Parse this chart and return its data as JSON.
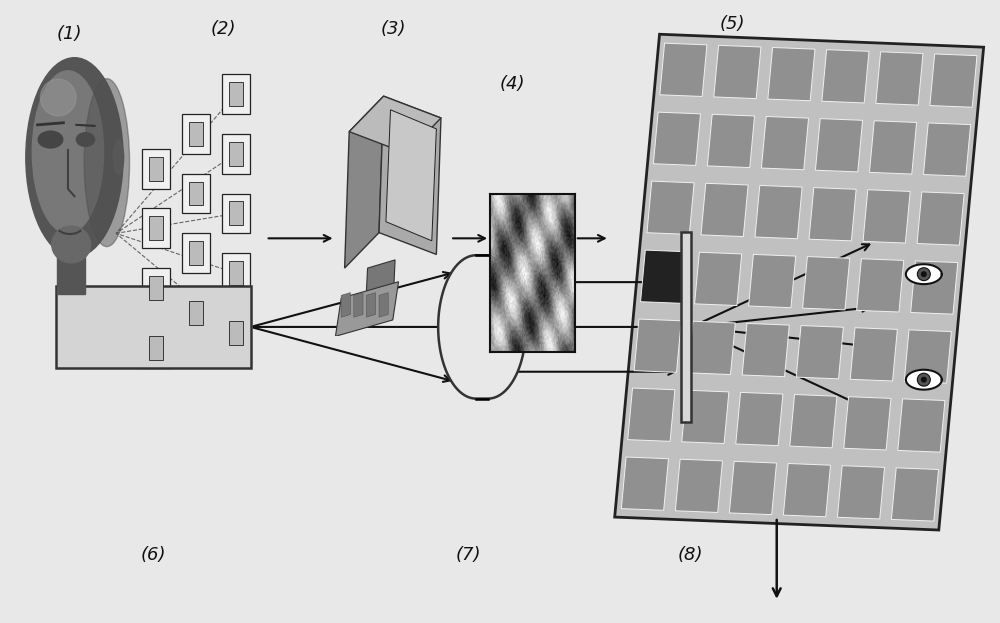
{
  "bg_color": "#e8e8e8",
  "label_color": "#111111",
  "fig_w": 10.0,
  "fig_h": 6.23,
  "dpi": 100,
  "grid_color": "#888888",
  "grid_line_color": "#ffffff",
  "grid_dark_cell": "#333333",
  "plate_color": "#d8d8d8",
  "slm_color": "#d0d0d0",
  "arrow_color": "#111111"
}
